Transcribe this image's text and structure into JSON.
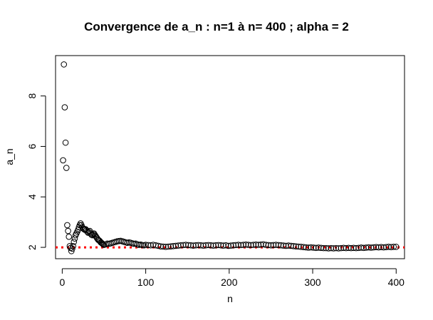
{
  "chart_data": {
    "type": "scatter",
    "title": "Convergence de a_n : n=1 à n= 400 ; alpha =  2",
    "xlabel": "n",
    "ylabel": "a_n",
    "xlim": [
      -8,
      410
    ],
    "ylim": [
      1.55,
      9.6
    ],
    "x_ticks": [
      0,
      100,
      200,
      300,
      400
    ],
    "y_ticks": [
      2,
      4,
      6,
      8
    ],
    "x_tick_labels": [
      "0",
      "100",
      "200",
      "300",
      "400"
    ],
    "y_tick_labels": [
      "2",
      "4",
      "6",
      "8"
    ],
    "reference_line": {
      "y": 2,
      "style": "dotted",
      "color": "#ff0000"
    },
    "marker": "open-circle",
    "points": [
      [
        1,
        5.45
      ],
      [
        2,
        9.25
      ],
      [
        3,
        7.55
      ],
      [
        4,
        6.15
      ],
      [
        5,
        5.15
      ],
      [
        6,
        2.88
      ],
      [
        7,
        2.65
      ],
      [
        8,
        2.42
      ],
      [
        9,
        2.05
      ],
      [
        10,
        1.98
      ],
      [
        11,
        1.85
      ],
      [
        12,
        1.95
      ],
      [
        13,
        2.05
      ],
      [
        14,
        2.22
      ],
      [
        15,
        2.35
      ],
      [
        16,
        2.48
      ],
      [
        17,
        2.55
      ],
      [
        18,
        2.62
      ],
      [
        19,
        2.7
      ],
      [
        20,
        2.8
      ],
      [
        21,
        2.88
      ],
      [
        22,
        2.95
      ],
      [
        23,
        2.88
      ],
      [
        24,
        2.8
      ],
      [
        25,
        2.75
      ],
      [
        26,
        2.72
      ],
      [
        27,
        2.7
      ],
      [
        28,
        2.72
      ],
      [
        29,
        2.68
      ],
      [
        30,
        2.62
      ],
      [
        31,
        2.58
      ],
      [
        32,
        2.62
      ],
      [
        33,
        2.65
      ],
      [
        34,
        2.55
      ],
      [
        35,
        2.5
      ],
      [
        36,
        2.48
      ],
      [
        37,
        2.52
      ],
      [
        38,
        2.55
      ],
      [
        39,
        2.5
      ],
      [
        40,
        2.45
      ],
      [
        41,
        2.4
      ],
      [
        42,
        2.35
      ],
      [
        43,
        2.3
      ],
      [
        44,
        2.28
      ],
      [
        45,
        2.25
      ],
      [
        46,
        2.2
      ],
      [
        47,
        2.18
      ],
      [
        48,
        2.15
      ],
      [
        49,
        2.12
      ],
      [
        50,
        2.1
      ],
      [
        52,
        2.12
      ],
      [
        54,
        2.15
      ],
      [
        56,
        2.14
      ],
      [
        58,
        2.16
      ],
      [
        60,
        2.18
      ],
      [
        62,
        2.2
      ],
      [
        64,
        2.22
      ],
      [
        66,
        2.24
      ],
      [
        68,
        2.25
      ],
      [
        70,
        2.26
      ],
      [
        72,
        2.24
      ],
      [
        74,
        2.22
      ],
      [
        76,
        2.2
      ],
      [
        78,
        2.18
      ],
      [
        80,
        2.2
      ],
      [
        82,
        2.18
      ],
      [
        84,
        2.16
      ],
      [
        86,
        2.14
      ],
      [
        88,
        2.15
      ],
      [
        90,
        2.12
      ],
      [
        92,
        2.1
      ],
      [
        94,
        2.11
      ],
      [
        96,
        2.09
      ],
      [
        98,
        2.08
      ],
      [
        100,
        2.1
      ],
      [
        103,
        2.09
      ],
      [
        106,
        2.08
      ],
      [
        109,
        2.1
      ],
      [
        112,
        2.08
      ],
      [
        115,
        2.06
      ],
      [
        118,
        2.04
      ],
      [
        121,
        2.03
      ],
      [
        124,
        2.02
      ],
      [
        127,
        2.03
      ],
      [
        130,
        2.04
      ],
      [
        133,
        2.05
      ],
      [
        136,
        2.06
      ],
      [
        139,
        2.07
      ],
      [
        142,
        2.08
      ],
      [
        145,
        2.09
      ],
      [
        148,
        2.1
      ],
      [
        151,
        2.09
      ],
      [
        154,
        2.08
      ],
      [
        157,
        2.07
      ],
      [
        160,
        2.08
      ],
      [
        163,
        2.09
      ],
      [
        166,
        2.08
      ],
      [
        169,
        2.07
      ],
      [
        172,
        2.08
      ],
      [
        175,
        2.09
      ],
      [
        178,
        2.08
      ],
      [
        181,
        2.07
      ],
      [
        184,
        2.08
      ],
      [
        187,
        2.09
      ],
      [
        190,
        2.08
      ],
      [
        193,
        2.07
      ],
      [
        196,
        2.08
      ],
      [
        199,
        2.06
      ],
      [
        202,
        2.07
      ],
      [
        205,
        2.08
      ],
      [
        208,
        2.09
      ],
      [
        211,
        2.1
      ],
      [
        214,
        2.09
      ],
      [
        217,
        2.1
      ],
      [
        220,
        2.11
      ],
      [
        223,
        2.1
      ],
      [
        226,
        2.09
      ],
      [
        229,
        2.1
      ],
      [
        232,
        2.11
      ],
      [
        235,
        2.1
      ],
      [
        238,
        2.11
      ],
      [
        241,
        2.12
      ],
      [
        244,
        2.1
      ],
      [
        247,
        2.09
      ],
      [
        250,
        2.08
      ],
      [
        253,
        2.09
      ],
      [
        256,
        2.1
      ],
      [
        259,
        2.09
      ],
      [
        262,
        2.08
      ],
      [
        265,
        2.07
      ],
      [
        268,
        2.06
      ],
      [
        271,
        2.07
      ],
      [
        274,
        2.06
      ],
      [
        277,
        2.05
      ],
      [
        280,
        2.04
      ],
      [
        283,
        2.03
      ],
      [
        286,
        2.02
      ],
      [
        289,
        2.01
      ],
      [
        292,
        2.0
      ],
      [
        295,
        1.99
      ],
      [
        298,
        2.0
      ],
      [
        301,
        1.99
      ],
      [
        304,
        1.98
      ],
      [
        307,
        1.99
      ],
      [
        310,
        1.98
      ],
      [
        313,
        1.97
      ],
      [
        316,
        1.97
      ],
      [
        319,
        1.96
      ],
      [
        322,
        1.97
      ],
      [
        325,
        1.96
      ],
      [
        328,
        1.97
      ],
      [
        331,
        1.96
      ],
      [
        334,
        1.97
      ],
      [
        337,
        1.98
      ],
      [
        340,
        1.97
      ],
      [
        343,
        1.98
      ],
      [
        346,
        1.97
      ],
      [
        349,
        1.98
      ],
      [
        352,
        1.97
      ],
      [
        355,
        1.98
      ],
      [
        358,
        1.99
      ],
      [
        361,
        1.98
      ],
      [
        364,
        1.99
      ],
      [
        367,
        2.0
      ],
      [
        370,
        1.99
      ],
      [
        373,
        2.0
      ],
      [
        376,
        2.01
      ],
      [
        379,
        2.0
      ],
      [
        382,
        2.01
      ],
      [
        385,
        2.0
      ],
      [
        388,
        2.01
      ],
      [
        391,
        2.02
      ],
      [
        394,
        2.01
      ],
      [
        397,
        2.02
      ],
      [
        400,
        2.02
      ]
    ]
  }
}
